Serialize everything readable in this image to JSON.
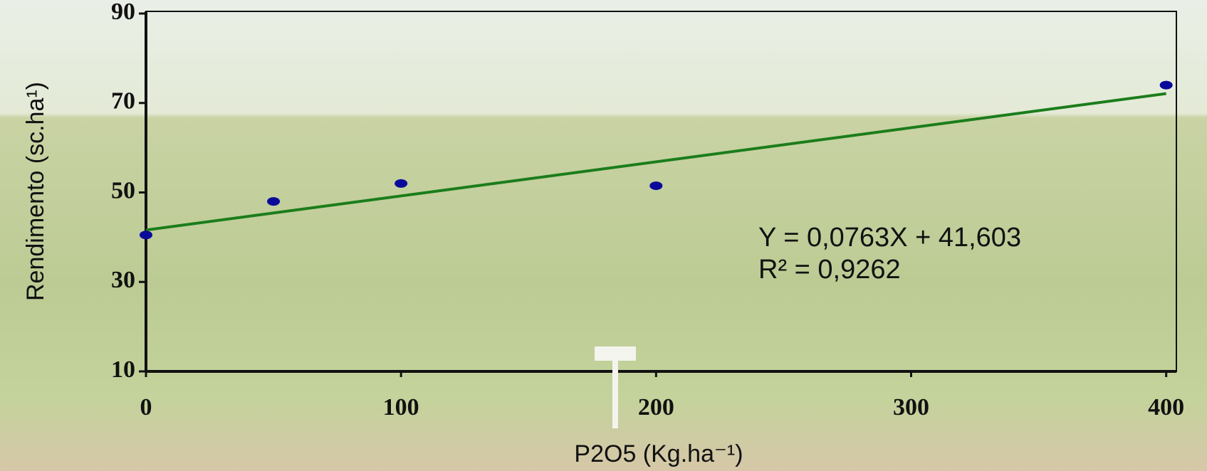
{
  "chart_data": {
    "type": "scatter",
    "x_label": "P2O5 (Kg.ha⁻¹)",
    "y_label": "Rendimento (sc.ha¹)",
    "x": [
      0,
      50,
      100,
      200,
      400
    ],
    "values": [
      40.5,
      48,
      52,
      51.5,
      74
    ],
    "color": "#0a0a9a",
    "trendline": {
      "x": [
        0,
        400
      ],
      "values": [
        41.6,
        72.1
      ],
      "color": "#1b7d1b"
    },
    "annotations": [
      "Y = 0,0763X + 41,603",
      "R² = 0,9262"
    ],
    "xlim": [
      0,
      404
    ],
    "xticks": [
      0,
      100,
      200,
      300,
      400
    ],
    "ylim": [
      10,
      90
    ],
    "yticks": [
      10,
      30,
      50,
      70,
      90
    ]
  }
}
